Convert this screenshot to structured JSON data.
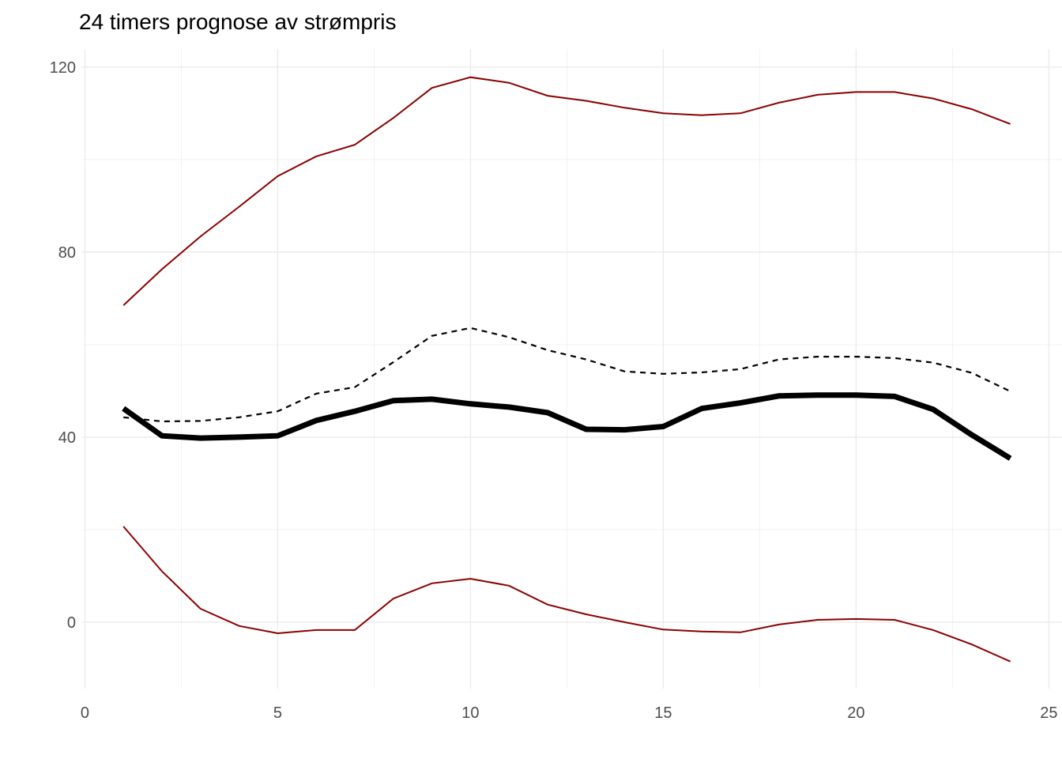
{
  "title": "24 timers prognose av strømpris",
  "colors": {
    "background": "#ffffff",
    "interval_line": "#8B0000",
    "forecast_line": "#000000",
    "grid_major": "#EBEBEB",
    "grid_minor": "#F0F0F0",
    "axis_text": "#4d4d4d",
    "title_text": "#000000"
  },
  "chart_data": {
    "type": "line",
    "title": "24 timers prognose av strømpris",
    "xlabel": "",
    "ylabel": "",
    "grid": true,
    "legend": "none",
    "xlim": [
      -0.07,
      25.34
    ],
    "ylim": [
      -14.36,
      123.9
    ],
    "x_ticks": [
      0,
      5,
      10,
      15,
      20,
      25
    ],
    "y_ticks": [
      0,
      40,
      80,
      120
    ],
    "x_minor_ticks": [
      2.5,
      7.5,
      12.5,
      17.5,
      22.5
    ],
    "y_minor_ticks": [
      20,
      60,
      100
    ],
    "x": [
      1,
      2,
      3,
      4,
      5,
      6,
      7,
      8,
      9,
      10,
      11,
      12,
      13,
      14,
      15,
      16,
      17,
      18,
      19,
      20,
      21,
      22,
      23,
      24
    ],
    "series": [
      {
        "name": "upper-interval",
        "style": "thin-solid",
        "color": "#8B0000",
        "values": [
          68.5,
          76.3,
          83.4,
          89.8,
          96.4,
          100.7,
          103.2,
          109.0,
          115.5,
          117.8,
          116.6,
          113.8,
          112.7,
          111.2,
          110.0,
          109.6,
          110.0,
          112.3,
          114.0,
          114.6,
          114.6,
          113.2,
          110.9,
          107.7
        ]
      },
      {
        "name": "mean-forecast-dashed",
        "style": "dashed",
        "color": "#000000",
        "values": [
          44.3,
          43.4,
          43.5,
          44.3,
          45.6,
          49.4,
          50.8,
          56.2,
          61.9,
          63.6,
          61.6,
          58.8,
          56.8,
          54.2,
          53.7,
          54.0,
          54.7,
          56.8,
          57.4,
          57.4,
          57.1,
          56.1,
          53.9,
          49.9
        ]
      },
      {
        "name": "median-forecast-thick",
        "style": "thick-solid",
        "color": "#000000",
        "values": [
          46.2,
          40.3,
          39.8,
          40.0,
          40.3,
          43.6,
          45.6,
          47.9,
          48.2,
          47.2,
          46.5,
          45.3,
          41.7,
          41.6,
          42.3,
          46.2,
          47.4,
          48.9,
          49.1,
          49.1,
          48.8,
          46.0,
          40.5,
          35.4
        ]
      },
      {
        "name": "lower-interval",
        "style": "thin-solid",
        "color": "#8B0000",
        "values": [
          20.7,
          11.0,
          2.9,
          -0.8,
          -2.4,
          -1.7,
          -1.7,
          5.1,
          8.4,
          9.4,
          7.9,
          3.8,
          1.7,
          0.0,
          -1.6,
          -2.0,
          -2.2,
          -0.5,
          0.5,
          0.7,
          0.5,
          -1.7,
          -4.8,
          -8.5
        ]
      }
    ]
  }
}
